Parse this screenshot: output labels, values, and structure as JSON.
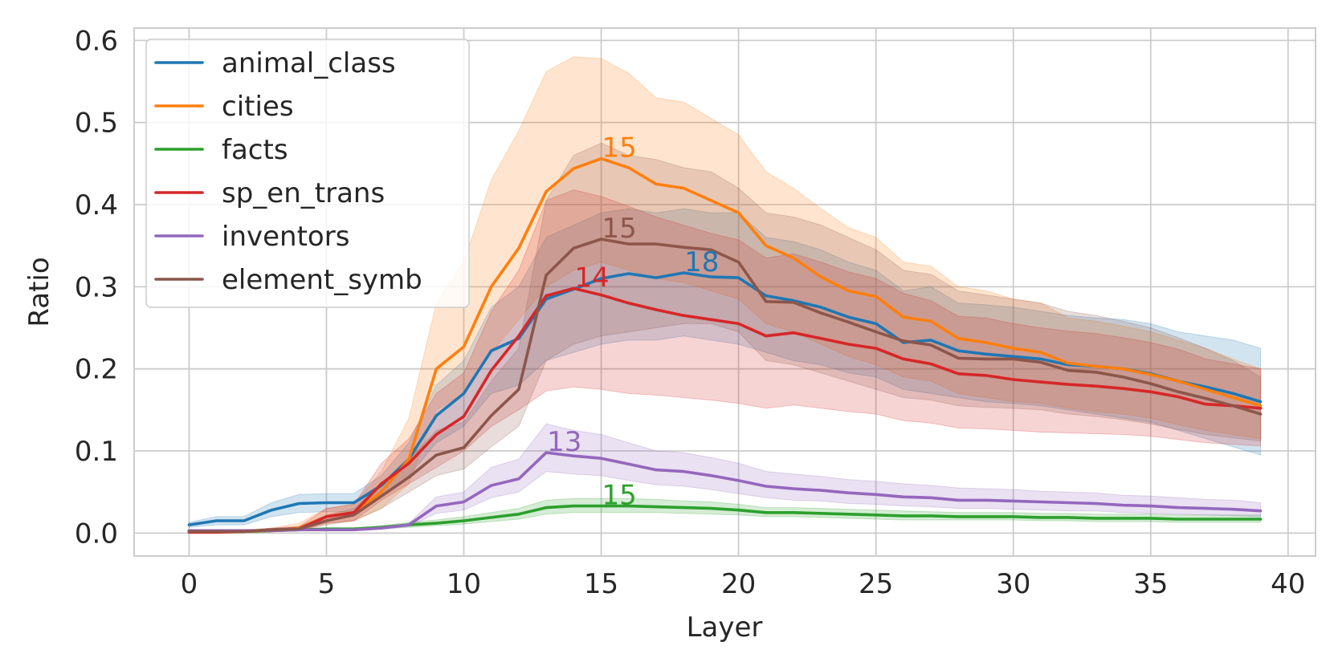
{
  "chart_data": {
    "type": "line",
    "title": "",
    "xlabel": "Layer",
    "ylabel": "Ratio",
    "xlim": [
      -2,
      41
    ],
    "ylim": [
      -0.028,
      0.615
    ],
    "xticks": [
      0,
      5,
      10,
      15,
      20,
      25,
      30,
      35,
      40
    ],
    "xtick_labels": [
      "0",
      "5",
      "10",
      "15",
      "20",
      "25",
      "30",
      "35",
      "40"
    ],
    "yticks": [
      0.0,
      0.1,
      0.2,
      0.3,
      0.4,
      0.5,
      0.6
    ],
    "ytick_labels": [
      "0.0",
      "0.1",
      "0.2",
      "0.3",
      "0.4",
      "0.5",
      "0.6"
    ],
    "grid": true,
    "legend_position": "top-left",
    "x": [
      0,
      1,
      2,
      3,
      4,
      5,
      6,
      7,
      8,
      9,
      10,
      11,
      12,
      13,
      14,
      15,
      16,
      17,
      18,
      19,
      20,
      21,
      22,
      23,
      24,
      25,
      26,
      27,
      28,
      29,
      30,
      31,
      32,
      33,
      34,
      35,
      36,
      37,
      38,
      39
    ],
    "series": [
      {
        "name": "animal_class",
        "color": "#1f77b4",
        "values": [
          0.01,
          0.015,
          0.015,
          0.028,
          0.036,
          0.037,
          0.037,
          0.058,
          0.09,
          0.143,
          0.17,
          0.222,
          0.237,
          0.285,
          0.297,
          0.31,
          0.316,
          0.311,
          0.317,
          0.312,
          0.311,
          0.289,
          0.283,
          0.275,
          0.263,
          0.255,
          0.232,
          0.235,
          0.222,
          0.218,
          0.215,
          0.212,
          0.205,
          0.203,
          0.2,
          0.194,
          0.185,
          0.178,
          0.17,
          0.16
        ],
        "lower": [
          0.007,
          0.01,
          0.01,
          0.02,
          0.025,
          0.026,
          0.026,
          0.045,
          0.07,
          0.11,
          0.13,
          0.17,
          0.18,
          0.21,
          0.22,
          0.23,
          0.235,
          0.235,
          0.24,
          0.235,
          0.23,
          0.22,
          0.21,
          0.205,
          0.195,
          0.19,
          0.175,
          0.17,
          0.165,
          0.16,
          0.158,
          0.155,
          0.15,
          0.145,
          0.14,
          0.135,
          0.125,
          0.115,
          0.105,
          0.095
        ],
        "upper": [
          0.013,
          0.02,
          0.02,
          0.037,
          0.047,
          0.048,
          0.048,
          0.07,
          0.11,
          0.18,
          0.21,
          0.275,
          0.3,
          0.36,
          0.375,
          0.39,
          0.395,
          0.39,
          0.395,
          0.39,
          0.39,
          0.36,
          0.355,
          0.345,
          0.33,
          0.32,
          0.295,
          0.3,
          0.28,
          0.278,
          0.275,
          0.27,
          0.265,
          0.262,
          0.26,
          0.255,
          0.245,
          0.24,
          0.235,
          0.225
        ],
        "peak": {
          "x": 18,
          "label": "18"
        }
      },
      {
        "name": "cities",
        "color": "#ff7f0e",
        "values": [
          0.002,
          0.002,
          0.002,
          0.003,
          0.006,
          0.02,
          0.025,
          0.05,
          0.09,
          0.2,
          0.227,
          0.3,
          0.347,
          0.416,
          0.444,
          0.456,
          0.445,
          0.425,
          0.42,
          0.405,
          0.39,
          0.35,
          0.335,
          0.312,
          0.295,
          0.288,
          0.263,
          0.258,
          0.237,
          0.232,
          0.225,
          0.22,
          0.207,
          0.203,
          0.2,
          0.193,
          0.185,
          0.175,
          0.165,
          0.155
        ],
        "lower": [
          0.0,
          0.0,
          0.0,
          0.001,
          0.003,
          0.012,
          0.015,
          0.03,
          0.06,
          0.15,
          0.17,
          0.22,
          0.26,
          0.3,
          0.32,
          0.33,
          0.32,
          0.31,
          0.305,
          0.295,
          0.285,
          0.255,
          0.245,
          0.23,
          0.215,
          0.205,
          0.19,
          0.185,
          0.17,
          0.165,
          0.16,
          0.158,
          0.152,
          0.148,
          0.145,
          0.14,
          0.132,
          0.125,
          0.12,
          0.115
        ],
        "upper": [
          0.004,
          0.004,
          0.004,
          0.006,
          0.012,
          0.03,
          0.035,
          0.075,
          0.14,
          0.28,
          0.33,
          0.43,
          0.49,
          0.562,
          0.58,
          0.578,
          0.56,
          0.53,
          0.525,
          0.505,
          0.485,
          0.44,
          0.42,
          0.395,
          0.372,
          0.36,
          0.33,
          0.325,
          0.3,
          0.295,
          0.285,
          0.28,
          0.262,
          0.258,
          0.252,
          0.245,
          0.235,
          0.225,
          0.212,
          0.2
        ],
        "peak": {
          "x": 15,
          "label": "15"
        }
      },
      {
        "name": "facts",
        "color": "#2ca02c",
        "values": [
          0.002,
          0.002,
          0.002,
          0.003,
          0.004,
          0.005,
          0.005,
          0.007,
          0.01,
          0.012,
          0.015,
          0.019,
          0.023,
          0.031,
          0.033,
          0.033,
          0.033,
          0.032,
          0.031,
          0.03,
          0.028,
          0.025,
          0.025,
          0.024,
          0.023,
          0.022,
          0.021,
          0.021,
          0.02,
          0.02,
          0.02,
          0.019,
          0.019,
          0.018,
          0.018,
          0.018,
          0.017,
          0.017,
          0.017,
          0.017
        ],
        "lower": [
          0.001,
          0.001,
          0.001,
          0.002,
          0.003,
          0.004,
          0.004,
          0.005,
          0.007,
          0.009,
          0.011,
          0.014,
          0.017,
          0.023,
          0.025,
          0.025,
          0.025,
          0.025,
          0.024,
          0.023,
          0.022,
          0.02,
          0.02,
          0.019,
          0.018,
          0.017,
          0.016,
          0.016,
          0.016,
          0.016,
          0.016,
          0.015,
          0.015,
          0.014,
          0.014,
          0.014,
          0.013,
          0.013,
          0.013,
          0.013
        ],
        "upper": [
          0.003,
          0.003,
          0.003,
          0.004,
          0.005,
          0.006,
          0.006,
          0.009,
          0.013,
          0.016,
          0.02,
          0.025,
          0.03,
          0.04,
          0.042,
          0.042,
          0.042,
          0.041,
          0.039,
          0.038,
          0.035,
          0.031,
          0.031,
          0.03,
          0.029,
          0.028,
          0.027,
          0.026,
          0.025,
          0.025,
          0.025,
          0.024,
          0.024,
          0.023,
          0.023,
          0.023,
          0.022,
          0.022,
          0.022,
          0.022
        ],
        "peak": {
          "x": 15,
          "label": "15"
        }
      },
      {
        "name": "sp_en_trans",
        "color": "#d62728",
        "values": [
          0.001,
          0.001,
          0.002,
          0.004,
          0.005,
          0.02,
          0.025,
          0.06,
          0.085,
          0.12,
          0.142,
          0.198,
          0.24,
          0.289,
          0.298,
          0.29,
          0.28,
          0.272,
          0.265,
          0.26,
          0.255,
          0.24,
          0.244,
          0.237,
          0.23,
          0.225,
          0.212,
          0.206,
          0.194,
          0.192,
          0.187,
          0.184,
          0.181,
          0.179,
          0.176,
          0.172,
          0.166,
          0.157,
          0.155,
          0.152
        ],
        "lower": [
          0.0,
          0.0,
          0.001,
          0.002,
          0.003,
          0.012,
          0.015,
          0.04,
          0.06,
          0.08,
          0.1,
          0.13,
          0.15,
          0.173,
          0.178,
          0.175,
          0.17,
          0.168,
          0.165,
          0.162,
          0.158,
          0.152,
          0.156,
          0.152,
          0.148,
          0.145,
          0.137,
          0.134,
          0.128,
          0.127,
          0.125,
          0.123,
          0.122,
          0.121,
          0.12,
          0.118,
          0.114,
          0.11,
          0.108,
          0.106
        ],
        "upper": [
          0.002,
          0.002,
          0.003,
          0.006,
          0.008,
          0.03,
          0.035,
          0.085,
          0.115,
          0.17,
          0.195,
          0.27,
          0.32,
          0.405,
          0.418,
          0.41,
          0.398,
          0.385,
          0.375,
          0.365,
          0.357,
          0.335,
          0.34,
          0.33,
          0.318,
          0.31,
          0.292,
          0.283,
          0.264,
          0.262,
          0.255,
          0.25,
          0.246,
          0.243,
          0.238,
          0.232,
          0.224,
          0.212,
          0.206,
          0.2
        ],
        "peak": {
          "x": 14,
          "label": "14"
        }
      },
      {
        "name": "inventors",
        "color": "#9467bd",
        "values": [
          0.003,
          0.003,
          0.003,
          0.003,
          0.004,
          0.004,
          0.004,
          0.006,
          0.01,
          0.033,
          0.038,
          0.058,
          0.066,
          0.098,
          0.094,
          0.091,
          0.084,
          0.077,
          0.075,
          0.07,
          0.064,
          0.057,
          0.054,
          0.052,
          0.049,
          0.047,
          0.044,
          0.043,
          0.04,
          0.04,
          0.039,
          0.038,
          0.037,
          0.036,
          0.034,
          0.033,
          0.031,
          0.03,
          0.029,
          0.027
        ],
        "lower": [
          0.002,
          0.002,
          0.002,
          0.002,
          0.003,
          0.003,
          0.003,
          0.005,
          0.008,
          0.024,
          0.028,
          0.043,
          0.05,
          0.075,
          0.072,
          0.07,
          0.064,
          0.059,
          0.057,
          0.053,
          0.048,
          0.043,
          0.04,
          0.039,
          0.036,
          0.035,
          0.033,
          0.032,
          0.03,
          0.03,
          0.029,
          0.028,
          0.027,
          0.027,
          0.025,
          0.024,
          0.023,
          0.022,
          0.021,
          0.02
        ],
        "upper": [
          0.004,
          0.004,
          0.004,
          0.004,
          0.005,
          0.005,
          0.005,
          0.007,
          0.012,
          0.044,
          0.05,
          0.08,
          0.09,
          0.133,
          0.125,
          0.12,
          0.11,
          0.1,
          0.098,
          0.092,
          0.085,
          0.075,
          0.072,
          0.069,
          0.065,
          0.063,
          0.06,
          0.058,
          0.055,
          0.054,
          0.053,
          0.051,
          0.05,
          0.049,
          0.046,
          0.045,
          0.043,
          0.041,
          0.04,
          0.037
        ],
        "peak": {
          "x": 13,
          "label": "13"
        }
      },
      {
        "name": "element_symb",
        "color": "#8c564b",
        "values": [
          0.002,
          0.002,
          0.002,
          0.004,
          0.005,
          0.015,
          0.022,
          0.045,
          0.068,
          0.095,
          0.104,
          0.143,
          0.175,
          0.314,
          0.347,
          0.358,
          0.352,
          0.352,
          0.348,
          0.345,
          0.33,
          0.282,
          0.281,
          0.268,
          0.257,
          0.245,
          0.234,
          0.229,
          0.213,
          0.212,
          0.212,
          0.208,
          0.198,
          0.196,
          0.19,
          0.182,
          0.172,
          0.164,
          0.155,
          0.145
        ],
        "lower": [
          0.001,
          0.001,
          0.001,
          0.002,
          0.003,
          0.01,
          0.015,
          0.03,
          0.05,
          0.07,
          0.078,
          0.105,
          0.13,
          0.21,
          0.23,
          0.24,
          0.245,
          0.25,
          0.255,
          0.255,
          0.245,
          0.21,
          0.205,
          0.195,
          0.185,
          0.175,
          0.165,
          0.162,
          0.155,
          0.153,
          0.152,
          0.15,
          0.145,
          0.142,
          0.138,
          0.133,
          0.126,
          0.12,
          0.116,
          0.112
        ],
        "upper": [
          0.003,
          0.003,
          0.003,
          0.006,
          0.008,
          0.022,
          0.03,
          0.06,
          0.09,
          0.125,
          0.135,
          0.185,
          0.225,
          0.405,
          0.46,
          0.475,
          0.46,
          0.455,
          0.445,
          0.44,
          0.42,
          0.39,
          0.385,
          0.375,
          0.36,
          0.345,
          0.32,
          0.315,
          0.295,
          0.29,
          0.285,
          0.28,
          0.27,
          0.265,
          0.258,
          0.25,
          0.238,
          0.225,
          0.21,
          0.19
        ],
        "peak": {
          "x": 15,
          "label": "15"
        }
      }
    ]
  }
}
